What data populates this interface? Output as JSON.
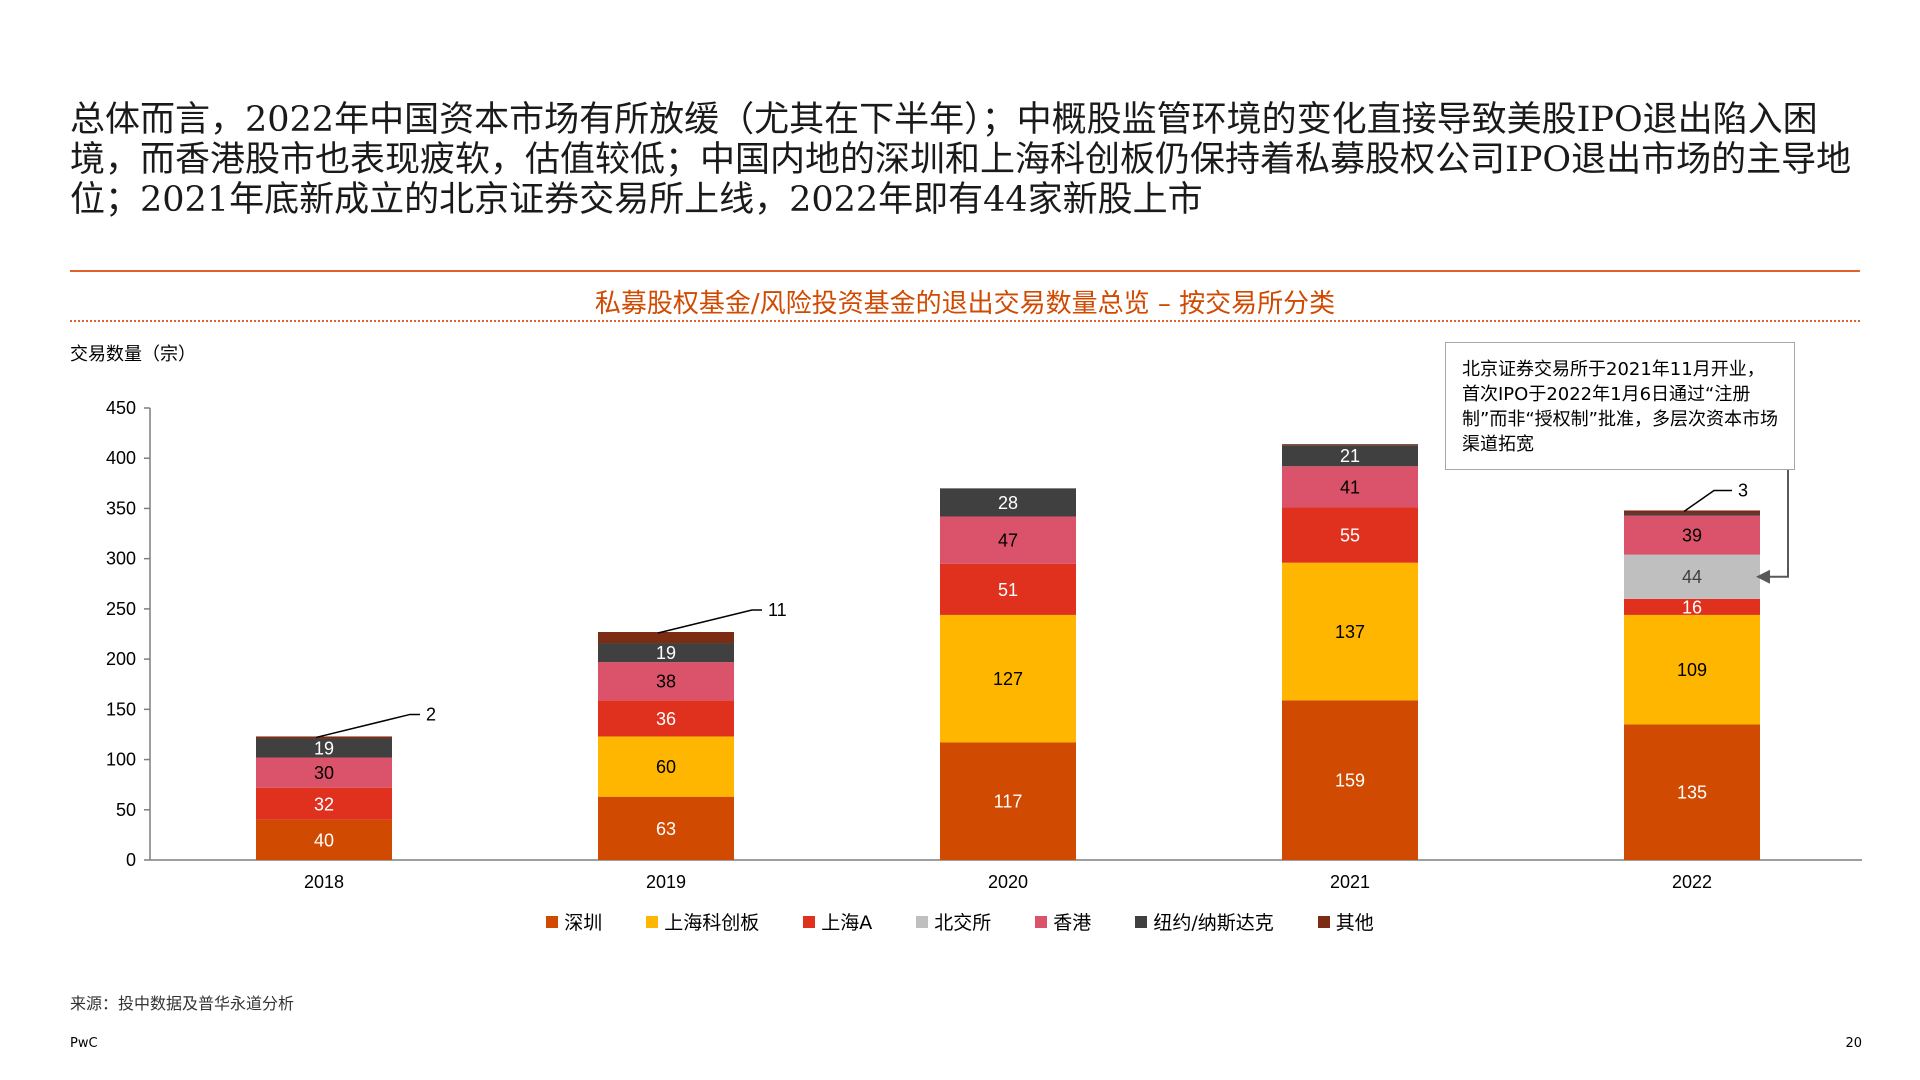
{
  "headline": "总体而言，2022年中国资本市场有所放缓（尤其在下半年）；中概股监管环境的变化直接导致美股IPO退出陷入困境，而香港股市也表现疲软，估值较低；中国内地的深圳和上海科创板仍保持着私募股权公司IPO退出市场的主导地位；2021年底新成立的北京证券交易所上线，2022年即有44家新股上市",
  "chart_data": {
    "type": "bar",
    "stacked": true,
    "title": "私募股权基金/风险投资基金的退出交易数量总览 – 按交易所分类",
    "ylabel": "交易数量（宗）",
    "xlabel": "",
    "ylim": [
      0,
      450
    ],
    "yticks": [
      0,
      50,
      100,
      150,
      200,
      250,
      300,
      350,
      400,
      450
    ],
    "categories": [
      "2018",
      "2019",
      "2020",
      "2021",
      "2022"
    ],
    "series": [
      {
        "name": "深圳",
        "color": "#d04a02",
        "label_color": "#ffffff",
        "values": [
          40,
          63,
          117,
          159,
          135
        ]
      },
      {
        "name": "上海科创板",
        "color": "#ffb600",
        "label_color": "#000000",
        "values": [
          0,
          60,
          127,
          137,
          109
        ]
      },
      {
        "name": "上海A",
        "color": "#e0301e",
        "label_color": "#ffffff",
        "values": [
          32,
          36,
          51,
          55,
          16
        ]
      },
      {
        "name": "北交所",
        "color": "#bfbfbf",
        "label_color": "#404040",
        "values": [
          0,
          0,
          0,
          0,
          44
        ]
      },
      {
        "name": "香港",
        "color": "#db536a",
        "label_color": "#000000",
        "values": [
          30,
          38,
          47,
          41,
          39
        ]
      },
      {
        "name": "纽约/纳斯达克",
        "color": "#404041",
        "label_color": "#ffffff",
        "values": [
          19,
          19,
          28,
          21,
          2
        ]
      },
      {
        "name": "其他",
        "color": "#7d2c14",
        "label_color": "#ffffff",
        "values": [
          2,
          11,
          0,
          1,
          3
        ]
      }
    ],
    "external_labels": [
      {
        "category": "2018",
        "series": "其他",
        "text": "2"
      },
      {
        "category": "2019",
        "series": "其他",
        "text": "11"
      },
      {
        "category": "2022",
        "series": "其他",
        "text": "3"
      }
    ],
    "grid": false,
    "legend_position": "bottom"
  },
  "callout": {
    "text": "北京证券交易所于2021年11月开业，首次IPO于2022年1月6日通过“注册制”而非“授权制”批准，多层次资本市场渠道拓宽",
    "points_to": {
      "category": "2022",
      "series": "北交所"
    }
  },
  "source": "来源：投中数据及普华永道分析",
  "brand": "PwC",
  "page_number": "20"
}
